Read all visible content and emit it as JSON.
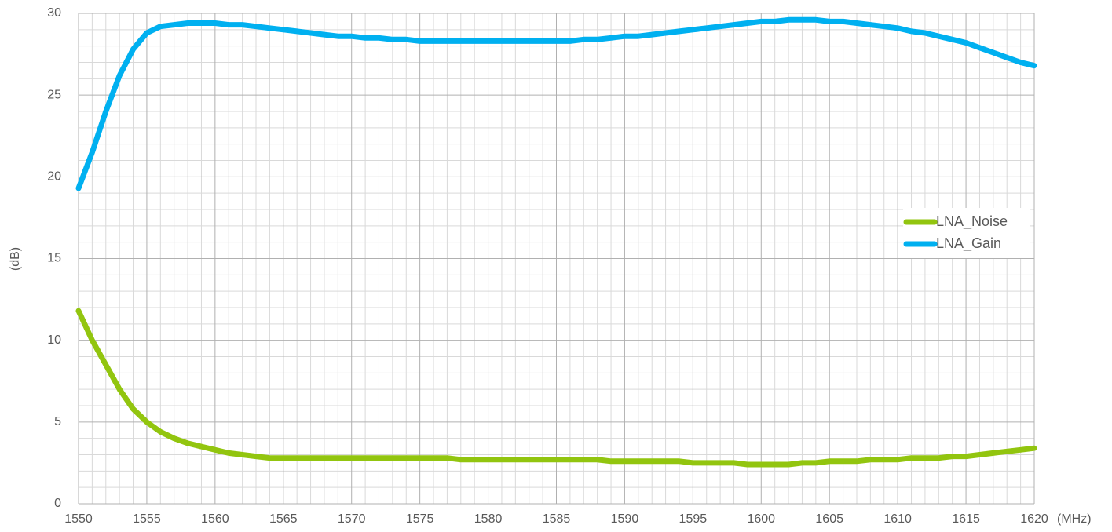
{
  "chart_data": {
    "type": "line",
    "ylabel": "(dB)",
    "xlabel": "(MHz)",
    "x": [
      1550,
      1551,
      1552,
      1553,
      1554,
      1555,
      1556,
      1557,
      1558,
      1559,
      1560,
      1561,
      1562,
      1563,
      1564,
      1565,
      1566,
      1567,
      1568,
      1569,
      1570,
      1571,
      1572,
      1573,
      1574,
      1575,
      1576,
      1577,
      1578,
      1579,
      1580,
      1581,
      1582,
      1583,
      1584,
      1585,
      1586,
      1587,
      1588,
      1589,
      1590,
      1591,
      1592,
      1593,
      1594,
      1595,
      1596,
      1597,
      1598,
      1599,
      1600,
      1601,
      1602,
      1603,
      1604,
      1605,
      1606,
      1607,
      1608,
      1609,
      1610,
      1611,
      1612,
      1613,
      1614,
      1615,
      1616,
      1617,
      1618,
      1619,
      1620
    ],
    "series": [
      {
        "name": "LNA_Noise",
        "color": "#92c50f",
        "values": [
          11.8,
          10.0,
          8.5,
          7.0,
          5.8,
          5.0,
          4.4,
          4.0,
          3.7,
          3.5,
          3.3,
          3.1,
          3.0,
          2.9,
          2.8,
          2.8,
          2.8,
          2.8,
          2.8,
          2.8,
          2.8,
          2.8,
          2.8,
          2.8,
          2.8,
          2.8,
          2.8,
          2.8,
          2.7,
          2.7,
          2.7,
          2.7,
          2.7,
          2.7,
          2.7,
          2.7,
          2.7,
          2.7,
          2.7,
          2.6,
          2.6,
          2.6,
          2.6,
          2.6,
          2.6,
          2.5,
          2.5,
          2.5,
          2.5,
          2.4,
          2.4,
          2.4,
          2.4,
          2.5,
          2.5,
          2.6,
          2.6,
          2.6,
          2.7,
          2.7,
          2.7,
          2.8,
          2.8,
          2.8,
          2.9,
          2.9,
          3.0,
          3.1,
          3.2,
          3.3,
          3.4
        ]
      },
      {
        "name": "LNA_Gain",
        "color": "#00b0f0",
        "values": [
          19.3,
          21.5,
          24.0,
          26.2,
          27.8,
          28.8,
          29.2,
          29.3,
          29.4,
          29.4,
          29.4,
          29.3,
          29.3,
          29.2,
          29.1,
          29.0,
          28.9,
          28.8,
          28.7,
          28.6,
          28.6,
          28.5,
          28.5,
          28.4,
          28.4,
          28.3,
          28.3,
          28.3,
          28.3,
          28.3,
          28.3,
          28.3,
          28.3,
          28.3,
          28.3,
          28.3,
          28.3,
          28.4,
          28.4,
          28.5,
          28.6,
          28.6,
          28.7,
          28.8,
          28.9,
          29.0,
          29.1,
          29.2,
          29.3,
          29.4,
          29.5,
          29.5,
          29.6,
          29.6,
          29.6,
          29.5,
          29.5,
          29.4,
          29.3,
          29.2,
          29.1,
          28.9,
          28.8,
          28.6,
          28.4,
          28.2,
          27.9,
          27.6,
          27.3,
          27.0,
          26.8
        ]
      }
    ],
    "xlim": [
      1550,
      1620
    ],
    "xticks": [
      1550,
      1555,
      1560,
      1565,
      1570,
      1575,
      1580,
      1585,
      1590,
      1595,
      1600,
      1605,
      1610,
      1615,
      1620
    ],
    "ylim": [
      0,
      30
    ],
    "yticks": [
      0,
      5,
      10,
      15,
      20,
      25,
      30
    ],
    "grid": true,
    "legend": "right"
  }
}
